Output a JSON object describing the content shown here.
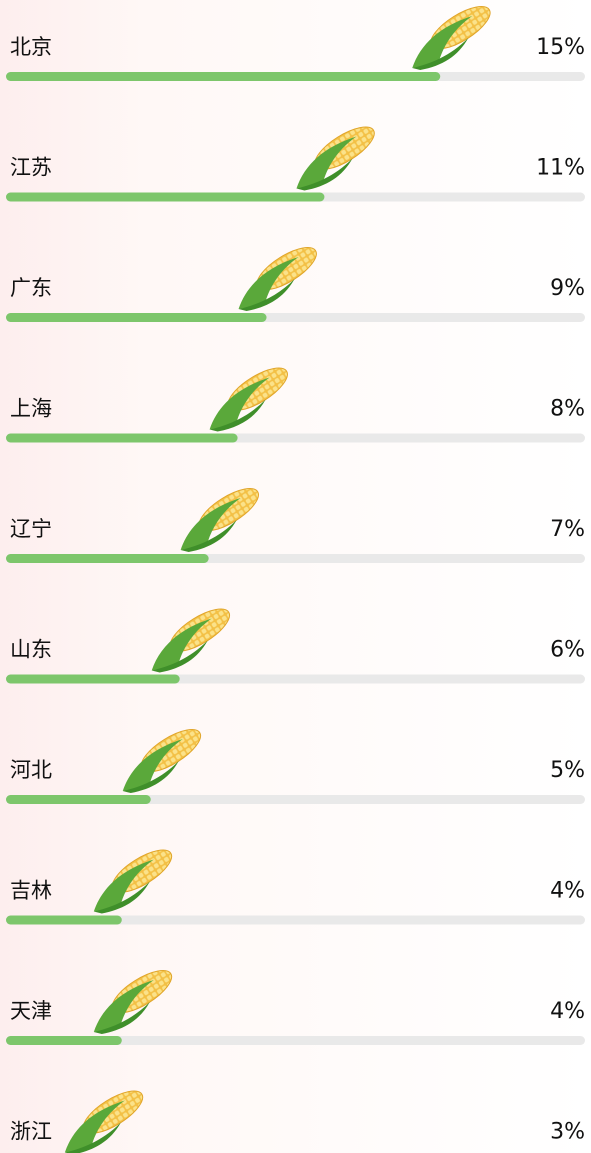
{
  "chart_data": {
    "type": "bar",
    "orientation": "horizontal",
    "categories": [
      "北京",
      "江苏",
      "广东",
      "上海",
      "辽宁",
      "山东",
      "河北",
      "吉林",
      "天津",
      "浙江"
    ],
    "values": [
      15,
      11,
      9,
      8,
      7,
      6,
      5,
      4,
      4,
      3
    ],
    "value_labels": [
      "15%",
      "11%",
      "9%",
      "8%",
      "7%",
      "6%",
      "5%",
      "4%",
      "4%",
      "3%"
    ],
    "xlim": [
      0,
      20
    ],
    "color": "#7dc66b",
    "track_color": "#e9e9e9"
  }
}
